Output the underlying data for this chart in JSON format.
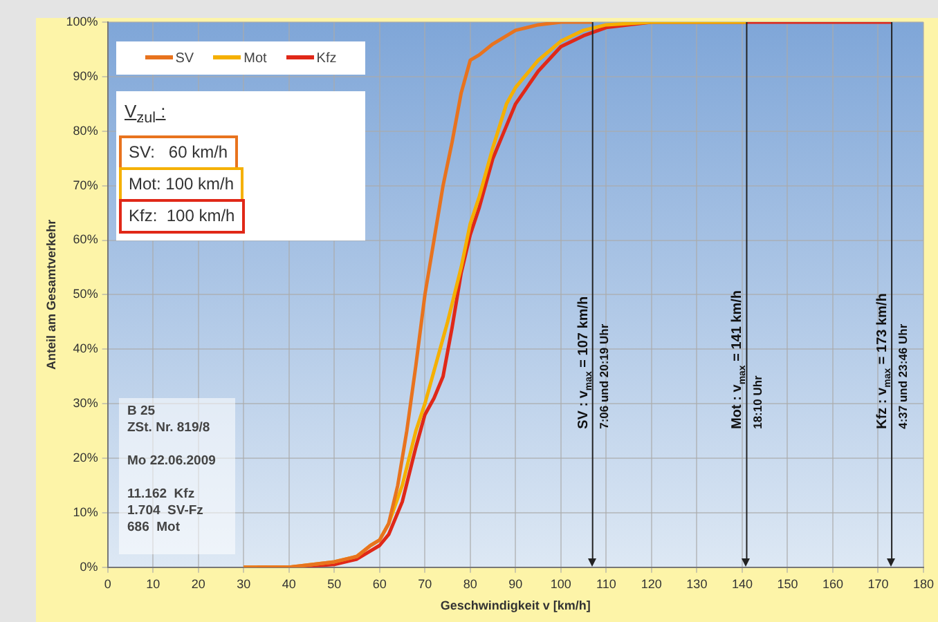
{
  "chart_data": {
    "type": "line",
    "xlabel": "Geschwindigkeit v [km/h]",
    "ylabel": "Anteil am Gesamtverkehr",
    "xlim": [
      0,
      180
    ],
    "xticks": [
      0,
      10,
      20,
      30,
      40,
      50,
      60,
      70,
      80,
      90,
      100,
      110,
      120,
      130,
      140,
      150,
      160,
      170,
      180
    ],
    "ylim": [
      0,
      100
    ],
    "yticks": [
      {
        "value": 0,
        "label": "0%"
      },
      {
        "value": 10,
        "label": "10%"
      },
      {
        "value": 20,
        "label": "20%"
      },
      {
        "value": 30,
        "label": "30%"
      },
      {
        "value": 40,
        "label": "40%"
      },
      {
        "value": 50,
        "label": "50%"
      },
      {
        "value": 60,
        "label": "60%"
      },
      {
        "value": 70,
        "label": "70%"
      },
      {
        "value": 80,
        "label": "80%"
      },
      {
        "value": 90,
        "label": "90%"
      },
      {
        "value": 100,
        "label": "100%"
      }
    ],
    "grid": true,
    "legend": "top left",
    "marker": "none",
    "line_style": "solid",
    "series": [
      {
        "name": "SV",
        "color": "#e8731e",
        "x": [
          30,
          40,
          50,
          55,
          58,
          60,
          62,
          64,
          66,
          68,
          70,
          72,
          74,
          76,
          78,
          80,
          82,
          85,
          90,
          95,
          100,
          107
        ],
        "values": [
          0,
          0,
          1,
          2,
          4,
          5,
          8,
          15,
          25,
          37,
          50,
          60,
          70,
          78,
          87,
          93,
          94,
          96,
          98.5,
          99.5,
          100,
          100
        ]
      },
      {
        "name": "Mot",
        "color": "#f5b000",
        "x": [
          30,
          40,
          50,
          55,
          58,
          60,
          62,
          65,
          68,
          70,
          72,
          75,
          78,
          80,
          82,
          85,
          88,
          90,
          95,
          100,
          105,
          110,
          120,
          141
        ],
        "values": [
          0,
          0,
          1,
          2,
          4,
          5,
          8,
          15,
          25,
          30,
          36,
          45,
          55,
          63,
          68,
          77,
          85,
          88,
          93,
          96.5,
          98.5,
          99.5,
          100,
          100
        ]
      },
      {
        "name": "Kfz",
        "color": "#e02818",
        "x": [
          33,
          40,
          50,
          55,
          58,
          60,
          62,
          65,
          68,
          70,
          72,
          74,
          76,
          78,
          80,
          82,
          85,
          88,
          90,
          95,
          100,
          105,
          110,
          120,
          173
        ],
        "values": [
          0,
          0,
          0.5,
          1.5,
          3,
          4,
          6,
          12,
          22,
          28,
          31,
          35,
          44,
          54,
          61,
          66,
          75,
          81,
          85,
          91,
          95.5,
          97.5,
          99,
          100,
          100
        ]
      }
    ],
    "ref_lines": [
      {
        "axis": "x",
        "value": 107,
        "label": "SV : v$_{max}$ = 107 km/h\n7:06 und 20:19 Uhr",
        "color": "#222222"
      },
      {
        "axis": "x",
        "value": 141,
        "label": "Mot : v$_{max}$ = 141 km/h\n18:10 Uhr",
        "color": "#222222"
      },
      {
        "axis": "x",
        "value": 173,
        "label": "Kfz : v$_{max}$ = 173 km/h\n4:37 und 23:46 Uhr",
        "color": "#222222"
      }
    ],
    "annotations": [
      "V$_{zul}$ :",
      "SV:   60 km/h",
      "Mot: 100 km/h",
      "Kfz:  100 km/h",
      "B 25\nZSt. Nr. 819/8\n\nMo 22.06.2009\n\n11.162  Kfz\n1.704  SV-Fz\n686  Mot"
    ]
  }
}
